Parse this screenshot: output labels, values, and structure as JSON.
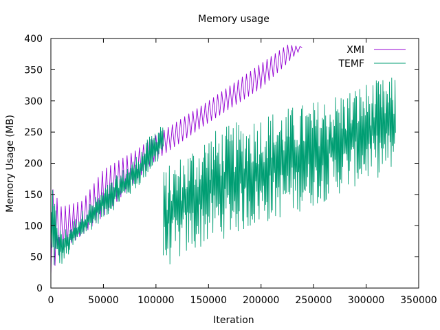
{
  "chart_data": {
    "type": "line",
    "title": "Memory usage",
    "xlabel": "Iteration",
    "ylabel": "Memory Usage (MB)",
    "xlim": [
      0,
      350000
    ],
    "ylim": [
      0,
      400
    ],
    "x_ticks": [
      "0",
      "50000",
      "100000",
      "150000",
      "200000",
      "250000",
      "300000",
      "350000"
    ],
    "y_ticks": [
      "0",
      "50",
      "100",
      "150",
      "200",
      "250",
      "300",
      "350",
      "400"
    ],
    "grid": false,
    "legend_position": "top-right",
    "series": [
      {
        "name": "XMI",
        "color": "#9400d3",
        "x_range": [
          0,
          239000
        ],
        "trend_low": [
          [
            0,
            20
          ],
          [
            10000,
            60
          ],
          [
            30000,
            85
          ],
          [
            50000,
            115
          ],
          [
            80000,
            170
          ],
          [
            100000,
            205
          ],
          [
            150000,
            265
          ],
          [
            200000,
            320
          ],
          [
            225000,
            360
          ],
          [
            239000,
            385
          ]
        ],
        "trend_high": [
          [
            0,
            165
          ],
          [
            10000,
            130
          ],
          [
            30000,
            140
          ],
          [
            50000,
            190
          ],
          [
            80000,
            220
          ],
          [
            100000,
            245
          ],
          [
            150000,
            300
          ],
          [
            200000,
            360
          ],
          [
            225000,
            390
          ],
          [
            239000,
            387
          ]
        ]
      },
      {
        "name": "TEMF",
        "color": "#009e73",
        "x_range": [
          0,
          328000
        ],
        "segments": [
          {
            "x_range": [
              0,
              107000
            ],
            "trend_low": [
              [
                0,
                25
              ],
              [
                10000,
                35
              ],
              [
                30000,
                80
              ],
              [
                50000,
                110
              ],
              [
                80000,
                155
              ],
              [
                107000,
                210
              ]
            ],
            "trend_high": [
              [
                0,
                170
              ],
              [
                10000,
                90
              ],
              [
                30000,
                125
              ],
              [
                50000,
                160
              ],
              [
                80000,
                210
              ],
              [
                107000,
                275
              ]
            ]
          },
          {
            "x_range": [
              107000,
              328000
            ],
            "trend_low": [
              [
                107000,
                30
              ],
              [
                150000,
                70
              ],
              [
                200000,
                100
              ],
              [
                250000,
                130
              ],
              [
                300000,
                170
              ],
              [
                328000,
                185
              ]
            ],
            "trend_high": [
              [
                107000,
                190
              ],
              [
                150000,
                250
              ],
              [
                200000,
                280
              ],
              [
                250000,
                300
              ],
              [
                300000,
                330
              ],
              [
                328000,
                340
              ]
            ]
          }
        ]
      }
    ]
  }
}
